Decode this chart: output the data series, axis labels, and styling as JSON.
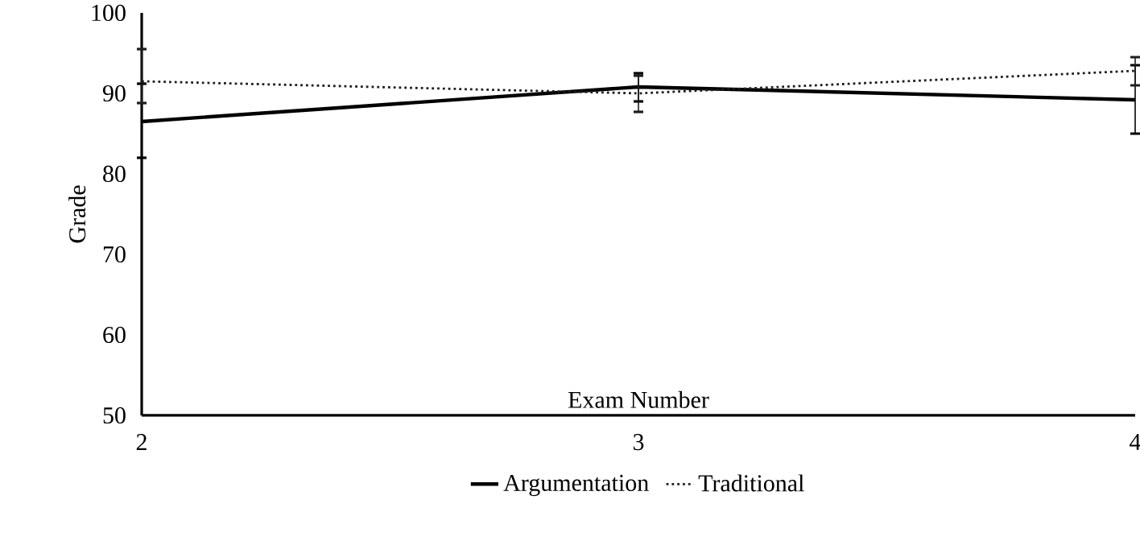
{
  "chart_data": {
    "type": "line",
    "xlabel": "Exam Number",
    "ylabel": "Grade",
    "x": [
      2,
      3,
      4
    ],
    "series": [
      {
        "name": "Argumentation",
        "color": "#000000",
        "line_style": "solid",
        "values": [
          86.5,
          90.8,
          89.2
        ],
        "errors": [
          [
            82,
            91.2
          ],
          [
            89,
            92.5
          ],
          [
            85,
            93.5
          ]
        ]
      },
      {
        "name": "Traditional",
        "color": "#1e1e1e",
        "line_style": "dotted",
        "values": [
          91.5,
          90,
          92.8
        ],
        "errors": [
          [
            88.8,
            95.5
          ],
          [
            87.7,
            92.2
          ],
          [
            91,
            94.5
          ]
        ]
      }
    ],
    "xlim": [
      2,
      4
    ],
    "xticks": [
      2,
      3,
      4
    ],
    "ylim": [
      50,
      100
    ],
    "yticks": [
      50,
      60,
      70,
      80,
      90,
      100
    ],
    "grid": false,
    "legend": "bottom",
    "marker": "none"
  }
}
